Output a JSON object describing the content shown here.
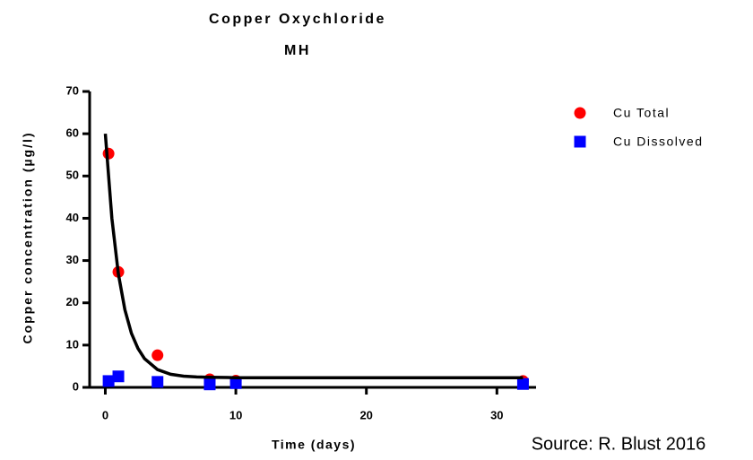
{
  "chart_data": {
    "type": "scatter",
    "title": "Copper Oxychloride",
    "subtitle": "MH",
    "x_label": "Time (days)",
    "y_label": "Copper concentration (µg/l)",
    "annotation": "Source: R. Blust 2016",
    "xlim": [
      -1.2,
      33
    ],
    "xticks": [
      0,
      10,
      20,
      30
    ],
    "ylim": [
      0,
      70
    ],
    "yticks": [
      0,
      10,
      20,
      30,
      40,
      50,
      60,
      70
    ],
    "legend": "right",
    "series": [
      {
        "name": "Cu Total",
        "color": "#ff0000",
        "marker": "circle",
        "x": [
          0.25,
          1,
          4,
          8,
          10,
          32
        ],
        "values": [
          55.3,
          27.3,
          7.6,
          1.9,
          1.6,
          1.5
        ]
      },
      {
        "name": "Cu Dissolved",
        "color": "#0000ff",
        "marker": "square",
        "x": [
          0.25,
          1,
          4,
          8,
          10,
          32
        ],
        "values": [
          1.5,
          2.6,
          1.3,
          0.7,
          1.0,
          0.8
        ]
      },
      {
        "color": "#000000",
        "marker": "line",
        "x": [
          0,
          0.5,
          1,
          1.5,
          2,
          2.5,
          3,
          4,
          5,
          6,
          7,
          8,
          10,
          15,
          20,
          25,
          32
        ],
        "values": [
          60.0,
          40.0,
          26.9,
          18.4,
          12.8,
          9.2,
          6.8,
          4.2,
          3.1,
          2.65,
          2.45,
          2.4,
          2.3,
          2.3,
          2.3,
          2.3,
          2.3
        ]
      }
    ]
  }
}
